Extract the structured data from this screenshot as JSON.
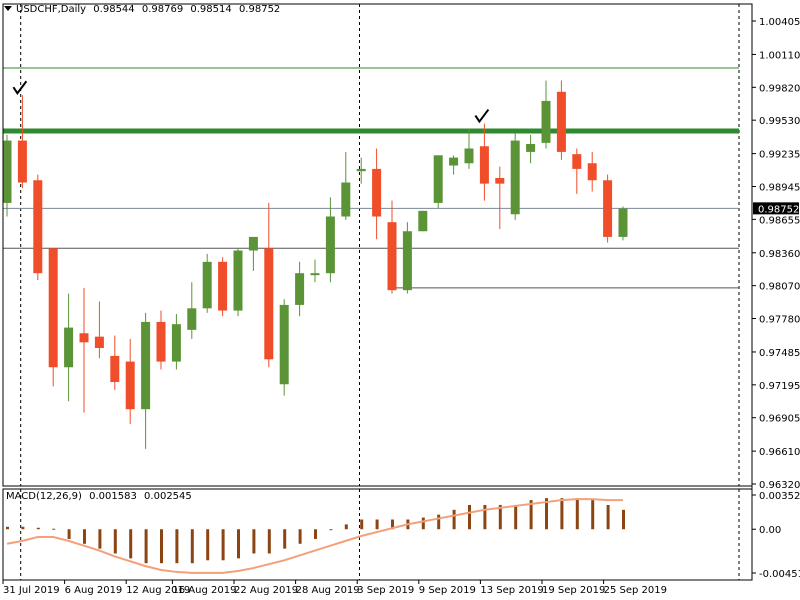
{
  "header": {
    "symbol": "USDCHF,Daily",
    "open": "0.98544",
    "high": "0.98769",
    "low": "0.98514",
    "close": "0.98752"
  },
  "macd_header": {
    "name": "MACD(12,26,9)",
    "macd": "0.001583",
    "signal": "0.002545"
  },
  "colors": {
    "bull": "#5a9436",
    "bear": "#f04e2a",
    "level": "#2f8a2f",
    "macd_bar": "#8b4513",
    "signal": "#f4a07a"
  },
  "chart_data": [
    {
      "type": "candlestick",
      "symbol": "USDCHF",
      "timeframe": "Daily",
      "y_ticks": [
        "1.00405",
        "1.00110",
        "0.99820",
        "0.99530",
        "0.99235",
        "0.98945",
        "0.98655",
        "0.98360",
        "0.98070",
        "0.97780",
        "0.97485",
        "0.97195",
        "0.96905",
        "0.96610",
        "0.96320"
      ],
      "ylim": [
        0.9632,
        1.00405
      ],
      "current_price": "0.98752",
      "x_labels": [
        "31 Jul 2019",
        "6 Aug 2019",
        "12 Aug 2019",
        "16 Aug 2019",
        "22 Aug 2019",
        "28 Aug 2019",
        "3 Sep 2019",
        "9 Sep 2019",
        "13 Sep 2019",
        "19 Sep 2019",
        "25 Sep 2019"
      ],
      "candles": [
        {
          "o": 0.988,
          "h": 0.994,
          "l": 0.9868,
          "c": 0.9935
        },
        {
          "o": 0.9935,
          "h": 0.9975,
          "l": 0.9893,
          "c": 0.9898
        },
        {
          "o": 0.99,
          "h": 0.9905,
          "l": 0.9812,
          "c": 0.9818
        },
        {
          "o": 0.984,
          "h": 0.984,
          "l": 0.9718,
          "c": 0.9735
        },
        {
          "o": 0.9735,
          "h": 0.98,
          "l": 0.9705,
          "c": 0.977
        },
        {
          "o": 0.9765,
          "h": 0.9805,
          "l": 0.9695,
          "c": 0.9757
        },
        {
          "o": 0.9762,
          "h": 0.9793,
          "l": 0.9743,
          "c": 0.9752
        },
        {
          "o": 0.9745,
          "h": 0.9763,
          "l": 0.9715,
          "c": 0.9722
        },
        {
          "o": 0.974,
          "h": 0.976,
          "l": 0.9685,
          "c": 0.9698
        },
        {
          "o": 0.9698,
          "h": 0.9783,
          "l": 0.9663,
          "c": 0.9775
        },
        {
          "o": 0.9775,
          "h": 0.9785,
          "l": 0.9733,
          "c": 0.974
        },
        {
          "o": 0.974,
          "h": 0.9782,
          "l": 0.9733,
          "c": 0.9773
        },
        {
          "o": 0.9768,
          "h": 0.981,
          "l": 0.976,
          "c": 0.9787
        },
        {
          "o": 0.9787,
          "h": 0.9835,
          "l": 0.9783,
          "c": 0.9828
        },
        {
          "o": 0.9828,
          "h": 0.9832,
          "l": 0.978,
          "c": 0.9785
        },
        {
          "o": 0.9785,
          "h": 0.984,
          "l": 0.978,
          "c": 0.9838
        },
        {
          "o": 0.9838,
          "h": 0.985,
          "l": 0.982,
          "c": 0.985
        },
        {
          "o": 0.984,
          "h": 0.988,
          "l": 0.9735,
          "c": 0.9742
        },
        {
          "o": 0.972,
          "h": 0.9795,
          "l": 0.971,
          "c": 0.979
        },
        {
          "o": 0.979,
          "h": 0.9828,
          "l": 0.978,
          "c": 0.9818
        },
        {
          "o": 0.9817,
          "h": 0.983,
          "l": 0.981,
          "c": 0.9818
        },
        {
          "o": 0.9818,
          "h": 0.9885,
          "l": 0.981,
          "c": 0.9868
        },
        {
          "o": 0.9868,
          "h": 0.9925,
          "l": 0.9865,
          "c": 0.9898
        },
        {
          "o": 0.9908,
          "h": 0.992,
          "l": 0.9897,
          "c": 0.991
        },
        {
          "o": 0.991,
          "h": 0.9928,
          "l": 0.9848,
          "c": 0.9868
        },
        {
          "o": 0.9863,
          "h": 0.9882,
          "l": 0.98,
          "c": 0.9803
        },
        {
          "o": 0.9803,
          "h": 0.9863,
          "l": 0.98,
          "c": 0.9855
        },
        {
          "o": 0.9855,
          "h": 0.9873,
          "l": 0.9855,
          "c": 0.9873
        },
        {
          "o": 0.988,
          "h": 0.9922,
          "l": 0.9875,
          "c": 0.9922
        },
        {
          "o": 0.9913,
          "h": 0.9922,
          "l": 0.9905,
          "c": 0.992
        },
        {
          "o": 0.9915,
          "h": 0.9945,
          "l": 0.991,
          "c": 0.9928
        },
        {
          "o": 0.993,
          "h": 0.995,
          "l": 0.9882,
          "c": 0.9897
        },
        {
          "o": 0.9902,
          "h": 0.9912,
          "l": 0.9857,
          "c": 0.9897
        },
        {
          "o": 0.987,
          "h": 0.9942,
          "l": 0.9865,
          "c": 0.9935
        },
        {
          "o": 0.9925,
          "h": 0.994,
          "l": 0.9915,
          "c": 0.9932
        },
        {
          "o": 0.9933,
          "h": 0.9988,
          "l": 0.9928,
          "c": 0.997
        },
        {
          "o": 0.9978,
          "h": 0.9988,
          "l": 0.9918,
          "c": 0.9925
        },
        {
          "o": 0.9923,
          "h": 0.9928,
          "l": 0.9888,
          "c": 0.991
        },
        {
          "o": 0.9915,
          "h": 0.9925,
          "l": 0.989,
          "c": 0.99
        },
        {
          "o": 0.99,
          "h": 0.9905,
          "l": 0.9845,
          "c": 0.985
        },
        {
          "o": 0.985,
          "h": 0.9877,
          "l": 0.9847,
          "c": 0.9875
        }
      ],
      "levels": [
        {
          "price": 0.9999,
          "thick": false
        },
        {
          "price": 0.99435,
          "thick": true
        },
        {
          "price": 0.98752,
          "thick": false
        },
        {
          "price": 0.984,
          "thick": false
        }
      ],
      "partial_level": {
        "price": 0.9805,
        "from_index": 25
      },
      "period_separators_index": [
        0.5,
        22.5
      ],
      "grid": false
    },
    {
      "type": "bar",
      "name": "MACD(12,26,9)",
      "y_ticks": [
        "0.003527",
        "0.00",
        "-0.00451"
      ],
      "ylim": [
        -0.00451,
        0.003527
      ],
      "macd": [
        0.00025,
        0.00025,
        0.00015,
        5e-05,
        -0.001,
        -0.0015,
        -0.002,
        -0.0025,
        -0.003,
        -0.0035,
        -0.0035,
        -0.0035,
        -0.0035,
        -0.0032,
        -0.0032,
        -0.003,
        -0.0025,
        -0.0025,
        -0.002,
        -0.0015,
        -0.001,
        0.0,
        0.0005,
        0.001,
        0.001,
        0.001,
        0.001,
        0.0012,
        0.0015,
        0.002,
        0.0025,
        0.0025,
        0.0025,
        0.0025,
        0.003,
        0.0032,
        0.0032,
        0.0032,
        0.003,
        0.0025,
        0.002
      ],
      "signal": [
        -0.0015,
        -0.0012,
        -0.0008,
        -0.0008,
        -0.0012,
        -0.0017,
        -0.0022,
        -0.0028,
        -0.0033,
        -0.0038,
        -0.0042,
        -0.0044,
        -0.0045,
        -0.0045,
        -0.0045,
        -0.0043,
        -0.004,
        -0.0036,
        -0.0032,
        -0.0027,
        -0.0022,
        -0.0017,
        -0.0012,
        -0.0007,
        -0.0003,
        0.0001,
        0.0005,
        0.0008,
        0.0011,
        0.0014,
        0.0017,
        0.002,
        0.0022,
        0.0024,
        0.0026,
        0.0028,
        0.003,
        0.0031,
        0.0031,
        0.003,
        0.003
      ]
    }
  ]
}
